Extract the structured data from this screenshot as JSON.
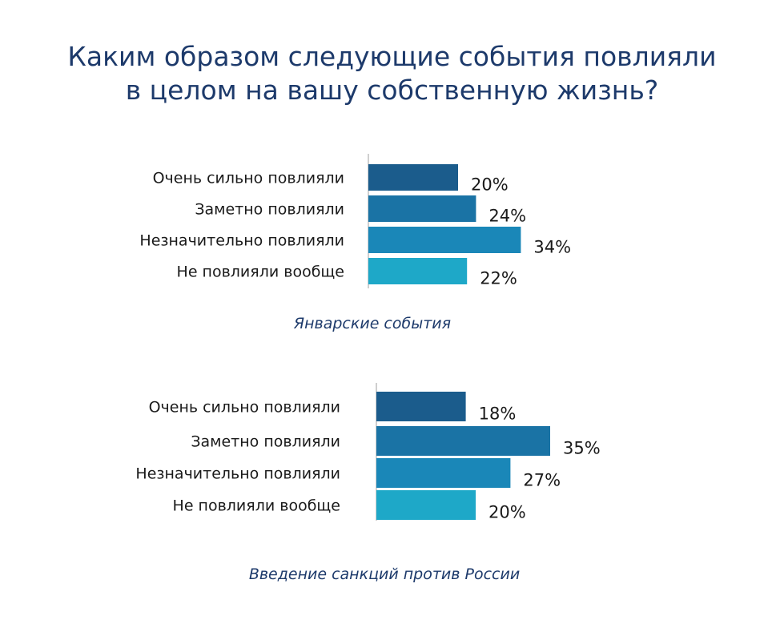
{
  "title_lines": [
    "Каким образом следующие события повлияли",
    "в целом на вашу собственную жизнь?"
  ],
  "colors": [
    "#1b5c8c",
    "#1a73a5",
    "#1a87b8",
    "#1ea8c8"
  ],
  "chart_data": [
    {
      "type": "bar",
      "orientation": "horizontal",
      "subtitle": "Январские события",
      "categories": [
        "Очень сильно повлияли",
        "Заметно повлияли",
        "Незначительно повлияли",
        "Не повлияли вообще"
      ],
      "values": [
        20,
        24,
        34,
        22
      ],
      "labels": [
        "20%",
        "24%",
        "34%",
        "22%"
      ],
      "xlim": [
        0,
        40
      ]
    },
    {
      "type": "bar",
      "orientation": "horizontal",
      "subtitle": "Введение санкций против России",
      "categories": [
        "Очень сильно повлияли",
        "Заметно повлияли",
        "Незначительно повлияли",
        "Не повлияли вообще"
      ],
      "values": [
        18,
        35,
        27,
        20
      ],
      "labels": [
        "18%",
        "35%",
        "27%",
        "20%"
      ],
      "xlim": [
        0,
        40
      ]
    }
  ]
}
